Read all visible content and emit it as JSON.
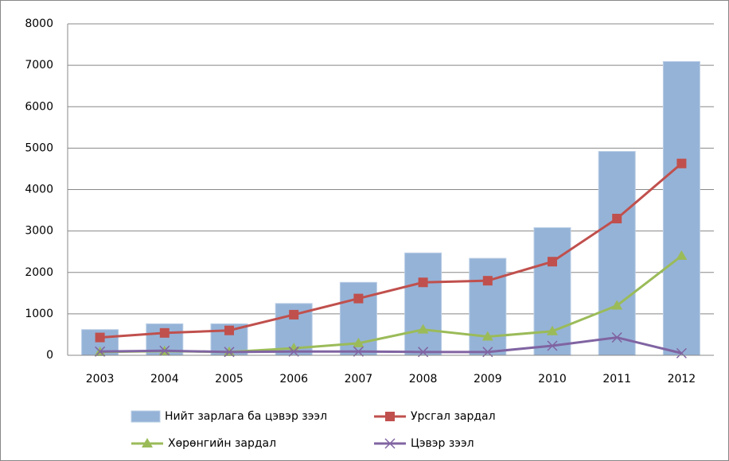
{
  "chart_data": {
    "type": "combo",
    "categories": [
      "2003",
      "2004",
      "2005",
      "2006",
      "2007",
      "2008",
      "2009",
      "2010",
      "2011",
      "2012"
    ],
    "series": [
      {
        "name": "Нийт зарлага ба цэвэр зээл",
        "type": "bar",
        "color": "#95b3d7",
        "values": [
          620,
          760,
          760,
          1250,
          1760,
          2470,
          2340,
          3080,
          4920,
          7090
        ]
      },
      {
        "name": "Урсгал зардал",
        "type": "line",
        "marker": "square",
        "color": "#c0504d",
        "values": [
          430,
          540,
          600,
          980,
          1370,
          1760,
          1800,
          2260,
          3300,
          4630
        ]
      },
      {
        "name": "Хөрөнгийн зардал",
        "type": "line",
        "marker": "triangle",
        "color": "#9bbb59",
        "values": [
          80,
          100,
          80,
          170,
          290,
          620,
          450,
          580,
          1200,
          2400
        ]
      },
      {
        "name": "Цэвэр зээл",
        "type": "line",
        "marker": "x",
        "color": "#8064a2",
        "values": [
          90,
          110,
          80,
          90,
          90,
          80,
          80,
          230,
          430,
          50
        ]
      }
    ],
    "ylim": [
      0,
      8000
    ],
    "yticks": [
      0,
      1000,
      2000,
      3000,
      4000,
      5000,
      6000,
      7000,
      8000
    ],
    "grid": true
  }
}
